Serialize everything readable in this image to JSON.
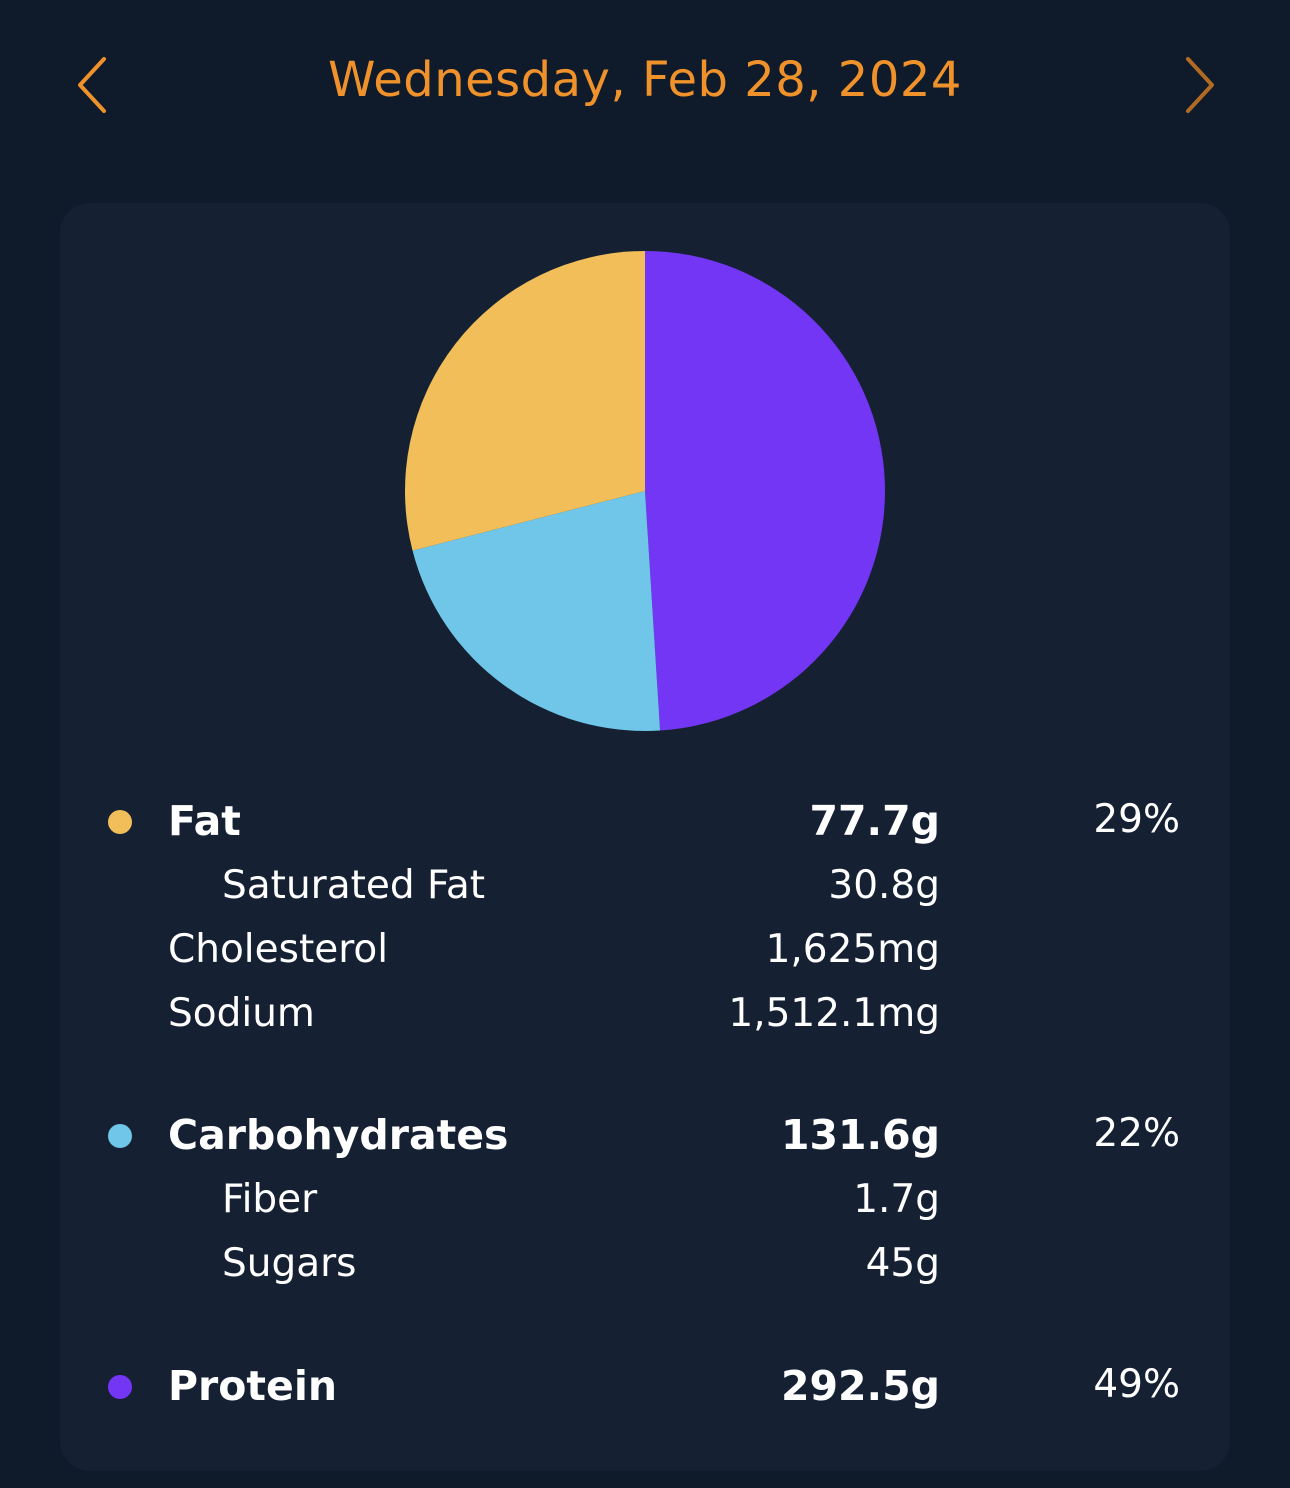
{
  "header": {
    "date": "Wednesday, Feb 28, 2024",
    "prev_icon": "chevron-left-icon",
    "next_icon": "chevron-right-icon",
    "accent_color": "#f0922b"
  },
  "colors": {
    "background": "#0f1a2b",
    "card": "#152133",
    "fat": "#f2be5a",
    "carbohydrates": "#6fc6e9",
    "protein": "#7436f5"
  },
  "chart_data": {
    "type": "pie",
    "slices": [
      {
        "name": "Protein",
        "value": 49,
        "color": "#7436f5"
      },
      {
        "name": "Carbohydrates",
        "value": 22,
        "color": "#6fc6e9"
      },
      {
        "name": "Fat",
        "value": 29,
        "color": "#f2be5a"
      }
    ]
  },
  "nutrients": {
    "fat": {
      "label": "Fat",
      "amount": "77.7g",
      "percent": "29%",
      "sub": [
        {
          "label": "Saturated Fat",
          "amount": "30.8g"
        }
      ]
    },
    "cholesterol": {
      "label": "Cholesterol",
      "amount": "1,625mg"
    },
    "sodium": {
      "label": "Sodium",
      "amount": "1,512.1mg"
    },
    "carbohydrates": {
      "label": "Carbohydrates",
      "amount": "131.6g",
      "percent": "22%",
      "sub": [
        {
          "label": "Fiber",
          "amount": "1.7g"
        },
        {
          "label": "Sugars",
          "amount": "45g"
        }
      ]
    },
    "protein": {
      "label": "Protein",
      "amount": "292.5g",
      "percent": "49%"
    }
  }
}
